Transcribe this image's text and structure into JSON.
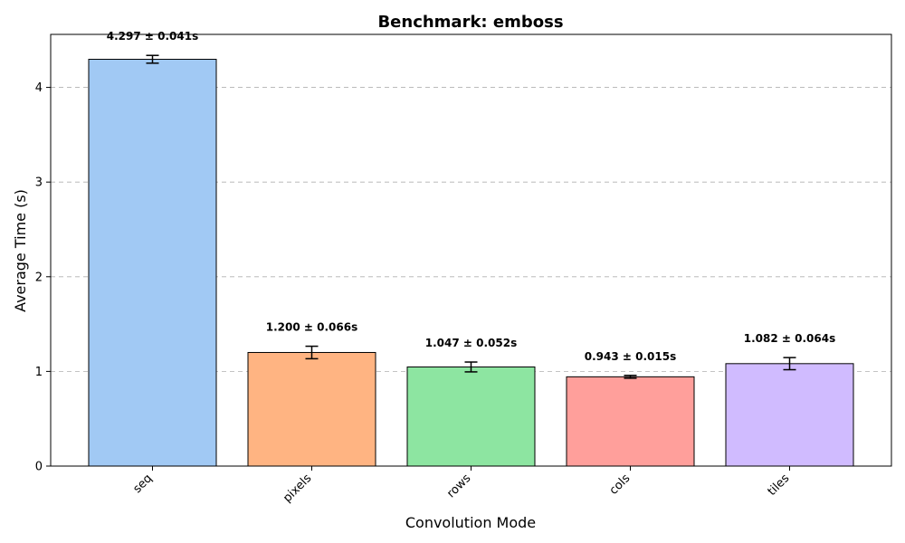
{
  "chart_data": {
    "type": "bar",
    "title": "Benchmark: emboss",
    "xlabel": "Convolution Mode",
    "ylabel": "Average Time (s)",
    "categories": [
      "seq",
      "pixels",
      "rows",
      "cols",
      "tiles"
    ],
    "values": [
      4.297,
      1.2,
      1.047,
      0.943,
      1.082
    ],
    "errors": [
      0.041,
      0.066,
      0.052,
      0.015,
      0.064
    ],
    "data_labels": [
      "4.297 ± 0.041s",
      "1.200 ± 0.066s",
      "1.047 ± 0.052s",
      "0.943 ± 0.015s",
      "1.082 ± 0.064s"
    ],
    "colors": [
      "#a1c9f4",
      "#ffb482",
      "#8de5a1",
      "#ff9f9b",
      "#d0bbff"
    ],
    "ylim": [
      0,
      4.56
    ],
    "yticks": [
      0,
      1,
      2,
      3,
      4
    ],
    "grid": "y-dashed",
    "legend": "none"
  }
}
